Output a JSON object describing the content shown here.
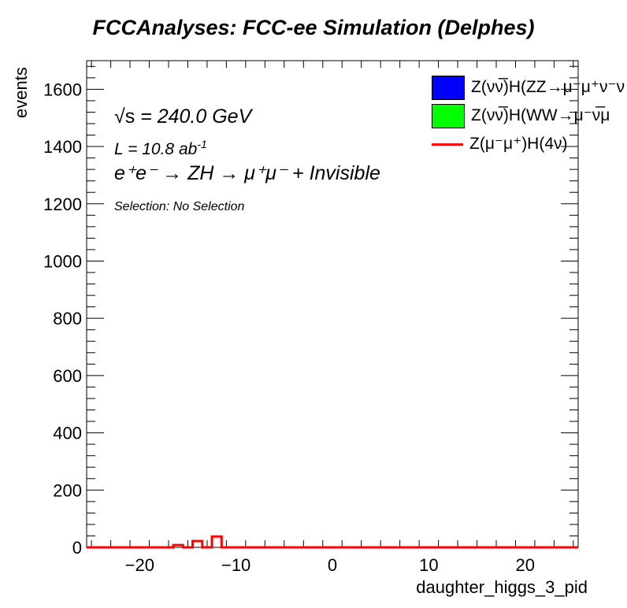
{
  "title": "FCCAnalyses: FCC-ee Simulation (Delphes)",
  "annotations": {
    "sqrt_s_symbol": "√s",
    "sqrt_s_value": " = 240.0 GeV",
    "lumi": "L = 10.8 ab",
    "lumi_exp": "-1",
    "process": "e⁺e⁻ → ZH → μ⁺μ⁻ + Invisible",
    "selection": "Selection: No Selection"
  },
  "legend": [
    {
      "label": "Z(νν̅)H(ZZ→μ⁻μ⁺ν⁻ν",
      "color": "#0000ff",
      "style": "box"
    },
    {
      "label": "Z(νν̅)H(WW→μ⁻ν̅μ",
      "color": "#00ff00",
      "style": "box"
    },
    {
      "label": "Z(μ⁻μ⁺)H(4ν)",
      "color": "#ff0000",
      "style": "line"
    }
  ],
  "chart_data": {
    "type": "bar",
    "xlabel": "daughter_higgs_3_pid",
    "ylabel": "events",
    "xlim": [
      -25.5,
      25.5
    ],
    "ylim": [
      0,
      1700
    ],
    "x_ticks": [
      -20,
      -10,
      0,
      10,
      20
    ],
    "x_tick_labels": [
      "−20",
      "−10",
      "0",
      "10",
      "20"
    ],
    "y_ticks": [
      0,
      200,
      400,
      600,
      800,
      1000,
      1200,
      1400,
      1600
    ],
    "y_tick_labels": [
      "0",
      "200",
      "400",
      "600",
      "800",
      "1000",
      "1200",
      "1400",
      "1600"
    ],
    "bin_width": 1,
    "series": [
      {
        "name": "Z(μ⁻μ⁺)H(4ν)",
        "color": "#ff0000",
        "style": "step",
        "bins": [
          {
            "x": -16,
            "value": 8
          },
          {
            "x": -14,
            "value": 22
          },
          {
            "x": -12,
            "value": 38
          }
        ]
      }
    ]
  }
}
